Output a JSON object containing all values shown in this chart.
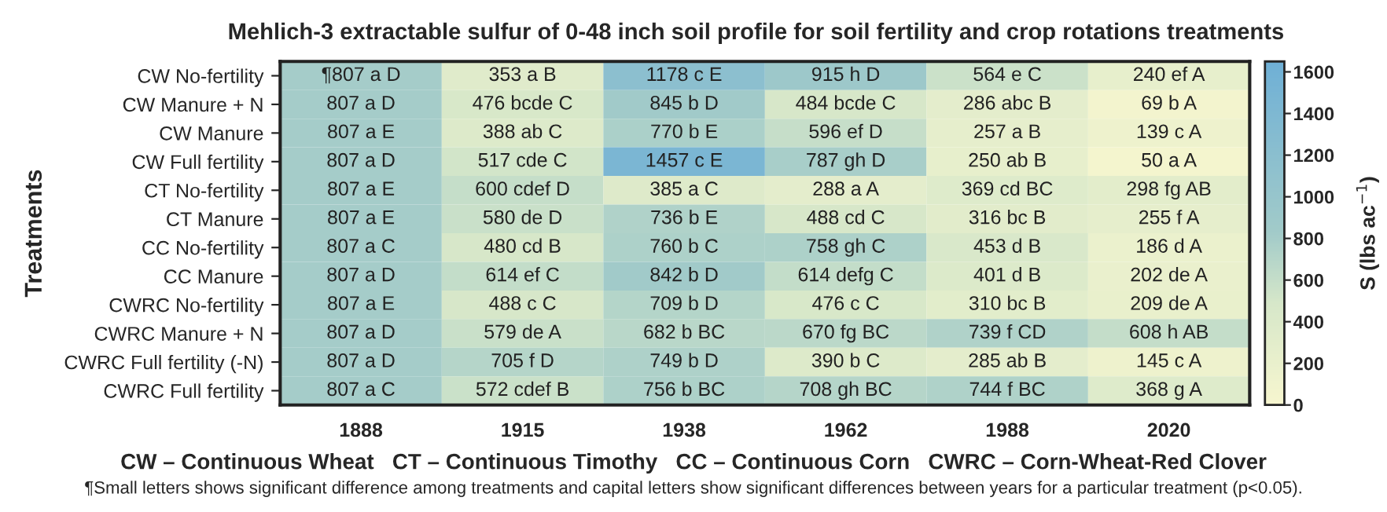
{
  "chart_data": {
    "type": "heatmap",
    "title": "Mehlich-3 extractable sulfur of 0-48 inch soil profile for soil fertility and crop rotations treatments",
    "ylabel": "Treatments",
    "clabel": "S (lbs ac$^{−1}$)",
    "categories": [
      "1888",
      "1915",
      "1938",
      "1962",
      "1988",
      "2020"
    ],
    "y_categories": [
      "CW No-fertility",
      "CW Manure + N",
      "CW Manure",
      "CW Full fertility",
      "CT No-fertility",
      "CT Manure",
      "CC No-fertility",
      "CC Manure",
      "CWRC No-fertility",
      "CWRC Manure + N",
      "CWRC Full fertility (-N)",
      "CWRC Full fertility"
    ],
    "cells": [
      [
        807,
        353,
        1178,
        915,
        564,
        240
      ],
      [
        807,
        476,
        845,
        484,
        286,
        69
      ],
      [
        807,
        388,
        770,
        596,
        257,
        139
      ],
      [
        807,
        517,
        1457,
        787,
        250,
        50
      ],
      [
        807,
        600,
        385,
        288,
        369,
        298
      ],
      [
        807,
        580,
        736,
        488,
        316,
        255
      ],
      [
        807,
        480,
        760,
        758,
        453,
        186
      ],
      [
        807,
        614,
        842,
        614,
        401,
        202
      ],
      [
        807,
        488,
        709,
        476,
        310,
        209
      ],
      [
        807,
        579,
        682,
        670,
        739,
        608
      ],
      [
        807,
        705,
        749,
        390,
        285,
        145
      ],
      [
        807,
        572,
        756,
        708,
        744,
        368
      ]
    ],
    "cell_labels": [
      [
        "¶807 a D",
        "353 a B",
        "1178 c E",
        "915 h D",
        "564 e C",
        "240 ef A"
      ],
      [
        "807 a D",
        "476 bcde C",
        "845 b D",
        "484 bcde C",
        "286 abc B",
        "69 b A"
      ],
      [
        "807 a E",
        "388 ab C",
        "770 b E",
        "596 ef D",
        "257 a B",
        "139 c A"
      ],
      [
        "807 a D",
        "517 cde C",
        "1457 c E",
        "787 gh D",
        "250 ab B",
        "50 a A"
      ],
      [
        "807 a E",
        "600 cdef D",
        "385 a C",
        "288 a A",
        "369 cd BC",
        "298 fg AB"
      ],
      [
        "807 a E",
        "580 de D",
        "736 b E",
        "488 cd C",
        "316 bc B",
        "255 f A"
      ],
      [
        "807 a C",
        "480 cd B",
        "760 b C",
        "758 gh C",
        "453 d B",
        "186 d A"
      ],
      [
        "807 a D",
        "614 ef C",
        "842 b D",
        "614 defg C",
        "401 d B",
        "202 de A"
      ],
      [
        "807 a E",
        "488 c C",
        "709 b D",
        "476 c C",
        "310 bc B",
        "209 de A"
      ],
      [
        "807 a D",
        "579 de A",
        "682 b BC",
        "670 fg BC",
        "739 f CD",
        "608 h AB"
      ],
      [
        "807 a D",
        "705 f D",
        "749 b D",
        "390 b C",
        "285 ab B",
        "145 c A"
      ],
      [
        "807 a C",
        "572 cdef B",
        "756 b BC",
        "708 gh BC",
        "744 f BC",
        "368 g A"
      ]
    ],
    "clim": [
      0,
      1650
    ],
    "cticks": [
      0,
      200,
      400,
      600,
      800,
      1000,
      1200,
      1400,
      1600
    ],
    "annotations": [
      "CW – Continuous Wheat   CT – Continuous Timothy   CC – Continuous Corn   CWRC – Corn-Wheat-Red Clover",
      "¶Small letters shows significant difference among treatments and capital letters show significant differences between years for a particular treatment (p<0.05)."
    ]
  }
}
